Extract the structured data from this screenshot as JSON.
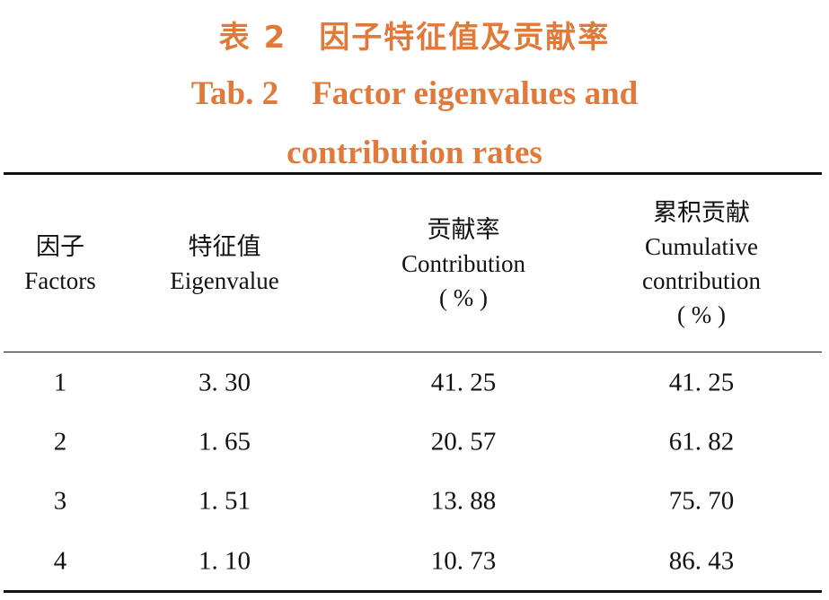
{
  "title_cn": "表 2　因子特征值及贡献率",
  "title_en": "Tab. 2　Factor eigenvalues and contribution rates",
  "table": {
    "headers": [
      [
        "因子",
        "Factors"
      ],
      [
        "特征值",
        "Eigenvalue"
      ],
      [
        "贡献率",
        "Contribution",
        "( % )"
      ],
      [
        "累积贡献",
        "Cumulative",
        "contribution",
        "( % )"
      ]
    ],
    "rows": [
      [
        "1",
        "3. 30",
        "41. 25",
        "41. 25"
      ],
      [
        "2",
        "1. 65",
        "20. 57",
        "61. 82"
      ],
      [
        "3",
        "1. 51",
        "13. 88",
        "75. 70"
      ],
      [
        "4",
        "1. 10",
        "10. 73",
        "86. 43"
      ]
    ]
  }
}
